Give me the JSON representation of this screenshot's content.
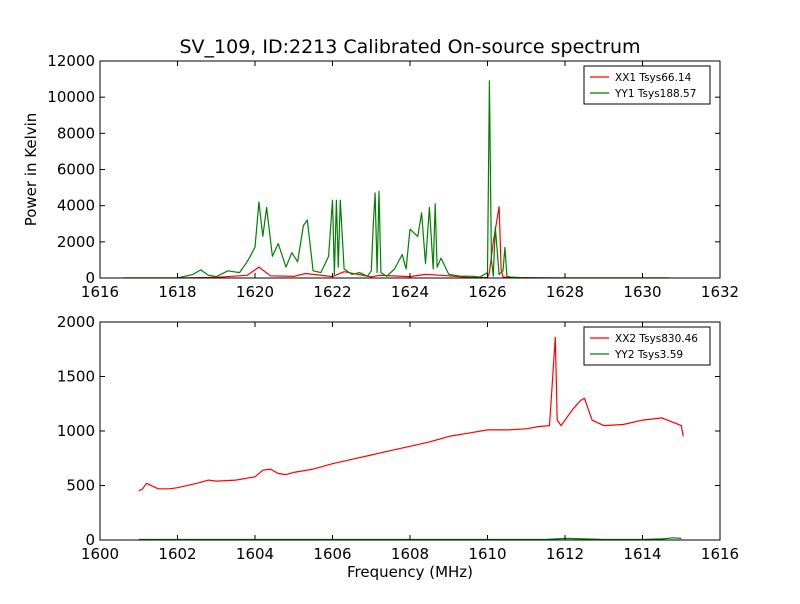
{
  "figure": {
    "title": "SV_109, ID:2213 Calibrated On-source spectrum"
  },
  "chart_data": [
    {
      "type": "line",
      "title": "SV_109, ID:2213 Calibrated On-source spectrum",
      "xlabel": "",
      "ylabel": "Power in Kelvin",
      "xlim": [
        1616,
        1632
      ],
      "ylim": [
        0,
        12000
      ],
      "xticks": [
        1616,
        1618,
        1620,
        1622,
        1624,
        1626,
        1628,
        1630,
        1632
      ],
      "yticks": [
        0,
        2000,
        4000,
        6000,
        8000,
        10000,
        12000
      ],
      "grid": false,
      "legend_position": "top-right",
      "series": [
        {
          "name": "XX1 Tsys66.14",
          "color": "#ff0000",
          "x": [
            1616.6,
            1618.0,
            1619.0,
            1619.8,
            1620.1,
            1620.4,
            1621.0,
            1621.3,
            1622.0,
            1622.3,
            1623.0,
            1623.2,
            1624.0,
            1624.4,
            1624.8,
            1625.5,
            1626.0,
            1626.05,
            1626.15,
            1626.3,
            1626.35,
            1626.4,
            1626.5,
            1628.0,
            1630.0,
            1630.7
          ],
          "y": [
            0,
            0,
            40,
            150,
            600,
            120,
            90,
            250,
            80,
            350,
            60,
            150,
            80,
            200,
            150,
            40,
            30,
            300,
            2000,
            3950,
            500,
            60,
            30,
            0,
            0,
            0
          ]
        },
        {
          "name": "YY1 Tsys188.57",
          "color": "#008000",
          "x": [
            1616.6,
            1618.0,
            1618.4,
            1618.6,
            1618.8,
            1619.0,
            1619.3,
            1619.6,
            1619.8,
            1620.0,
            1620.1,
            1620.2,
            1620.3,
            1620.45,
            1620.6,
            1620.8,
            1620.95,
            1621.1,
            1621.25,
            1621.35,
            1621.5,
            1621.7,
            1621.9,
            1622.0,
            1622.05,
            1622.1,
            1622.15,
            1622.2,
            1622.3,
            1622.5,
            1622.7,
            1622.9,
            1623.0,
            1623.05,
            1623.1,
            1623.15,
            1623.2,
            1623.25,
            1623.4,
            1623.6,
            1623.8,
            1623.9,
            1624.0,
            1624.1,
            1624.2,
            1624.3,
            1624.4,
            1624.5,
            1624.6,
            1624.65,
            1624.7,
            1624.8,
            1625.0,
            1625.3,
            1625.6,
            1625.8,
            1626.0,
            1626.05,
            1626.1,
            1626.15,
            1626.2,
            1626.3,
            1626.4,
            1626.45,
            1626.5,
            1626.6,
            1627.0,
            1628.0,
            1630.0,
            1630.7
          ],
          "y": [
            0,
            0,
            200,
            450,
            150,
            80,
            400,
            300,
            900,
            1700,
            4200,
            2300,
            3900,
            1200,
            1900,
            600,
            1400,
            900,
            2900,
            3200,
            400,
            300,
            1200,
            4300,
            200,
            4300,
            600,
            4300,
            500,
            200,
            300,
            100,
            400,
            2900,
            4700,
            300,
            4800,
            300,
            100,
            500,
            1300,
            500,
            2700,
            2500,
            2300,
            3600,
            800,
            3900,
            500,
            4100,
            600,
            1100,
            200,
            100,
            100,
            50,
            300,
            10900,
            1000,
            100,
            2800,
            200,
            400,
            1700,
            100,
            50,
            0,
            0,
            0,
            0
          ]
        }
      ]
    },
    {
      "type": "line",
      "title": "",
      "xlabel": "Frequency (MHz)",
      "ylabel": "",
      "xlim": [
        1600,
        1616
      ],
      "ylim": [
        0,
        2000
      ],
      "xticks": [
        1600,
        1602,
        1604,
        1606,
        1608,
        1610,
        1612,
        1614,
        1616
      ],
      "yticks": [
        0,
        500,
        1000,
        1500,
        2000
      ],
      "grid": false,
      "legend_position": "top-right",
      "series": [
        {
          "name": "XX2 Tsys830.46",
          "color": "#ff0000",
          "x": [
            1601.0,
            1601.1,
            1601.2,
            1601.5,
            1601.8,
            1602.0,
            1602.5,
            1602.8,
            1603.0,
            1603.5,
            1604.0,
            1604.2,
            1604.4,
            1604.6,
            1604.8,
            1605.0,
            1605.5,
            1606.0,
            1606.5,
            1607.0,
            1607.5,
            1608.0,
            1608.5,
            1609.0,
            1609.5,
            1610.0,
            1610.5,
            1611.0,
            1611.3,
            1611.6,
            1611.75,
            1611.8,
            1611.9,
            1612.0,
            1612.2,
            1612.4,
            1612.5,
            1612.7,
            1613.0,
            1613.5,
            1614.0,
            1614.5,
            1615.0,
            1615.05
          ],
          "y": [
            450,
            470,
            520,
            470,
            470,
            480,
            520,
            550,
            540,
            550,
            580,
            640,
            650,
            610,
            600,
            620,
            650,
            700,
            740,
            780,
            820,
            860,
            900,
            950,
            980,
            1010,
            1010,
            1020,
            1040,
            1050,
            1860,
            1100,
            1050,
            1100,
            1200,
            1280,
            1300,
            1100,
            1050,
            1060,
            1100,
            1120,
            1050,
            950
          ]
        },
        {
          "name": "YY2 Tsys3.59",
          "color": "#008000",
          "x": [
            1601.0,
            1605.0,
            1610.0,
            1611.5,
            1612.0,
            1612.5,
            1613.0,
            1614.0,
            1614.5,
            1614.8,
            1615.0
          ],
          "y": [
            5,
            5,
            5,
            5,
            15,
            10,
            5,
            5,
            10,
            20,
            15
          ]
        }
      ]
    }
  ]
}
